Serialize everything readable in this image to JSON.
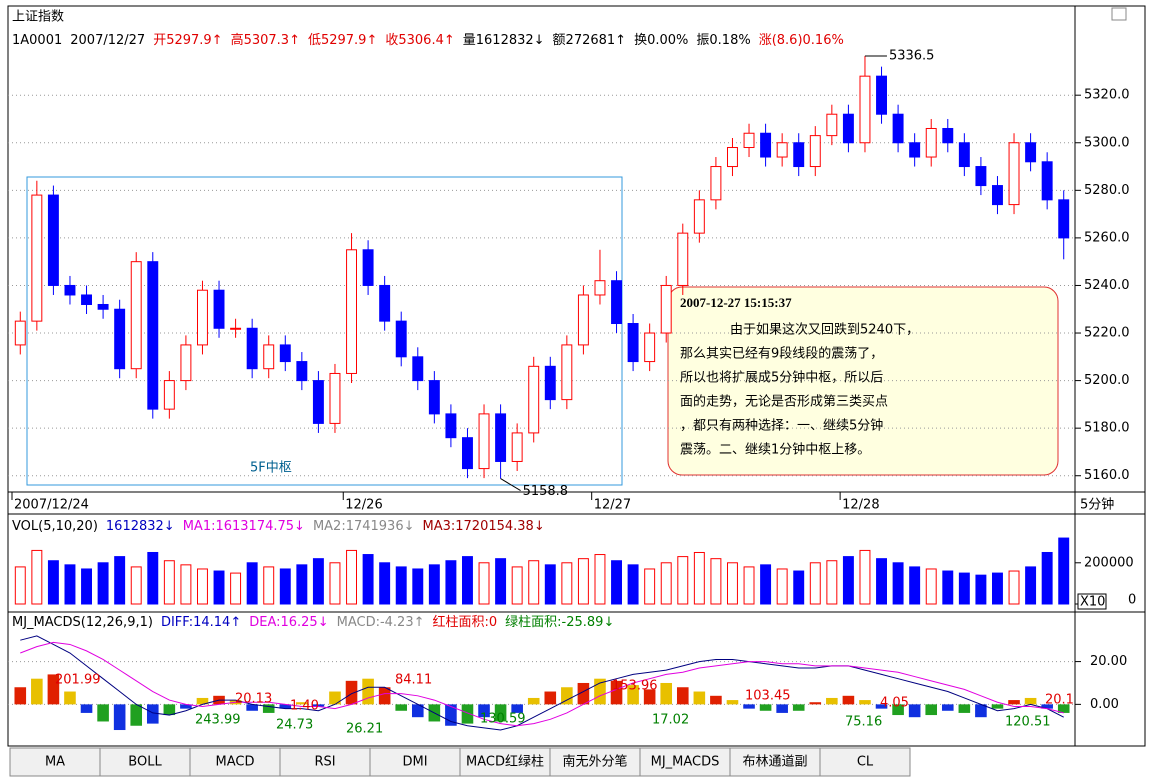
{
  "quote_line": [
    {
      "text": "1A0001",
      "color": "#000000"
    },
    {
      "text": "2007/12/27",
      "color": "#000000"
    },
    {
      "text": "开5297.9↑",
      "color": "#e00000"
    },
    {
      "text": "高5307.3↑",
      "color": "#e00000"
    },
    {
      "text": "低5297.9↑",
      "color": "#e00000"
    },
    {
      "text": "收5306.4↑",
      "color": "#e00000"
    },
    {
      "text": "量1612832↓",
      "color": "#000000"
    },
    {
      "text": "额272681↑",
      "color": "#000000"
    },
    {
      "text": "换0.00%",
      "color": "#000000"
    },
    {
      "text": "振0.18%",
      "color": "#000000"
    },
    {
      "text": "涨(8.6)0.16%",
      "color": "#e00000"
    }
  ],
  "zone_label": "5F中枢",
  "note": {
    "time": "2007-12-27 15:15:37",
    "lines": [
      "由于如果这次又回跌到5240下，",
      "那么其实已经有9段线段的震荡了，",
      "所以也将扩展成5分钟中枢，所以后",
      "面的走势，无论是否形成第三类买点",
      "，都只有两种选择：一、继续5分钟",
      "震荡。二、继续1分钟中枢上移。"
    ]
  },
  "tabs": [
    "MA",
    "BOLL",
    "MACD",
    "RSI",
    "DMI",
    "MACD红绿柱",
    "南无外分笔",
    "MJ_MACDS",
    "布林通道副",
    "CL"
  ],
  "chart_data": [
    {
      "type": "candlestick",
      "title": "上证指数",
      "period": "5分钟",
      "up_color": "#ff0000",
      "down_color": "#0000ff",
      "grid": true,
      "categories": [
        "2007/12/24",
        null,
        null,
        null,
        null,
        null,
        null,
        null,
        null,
        null,
        null,
        null,
        null,
        null,
        null,
        null,
        null,
        null,
        null,
        null,
        "12/26",
        null,
        null,
        null,
        null,
        null,
        null,
        null,
        null,
        null,
        null,
        null,
        null,
        null,
        null,
        "12/27",
        null,
        null,
        null,
        null,
        null,
        null,
        null,
        null,
        null,
        null,
        null,
        null,
        null,
        null,
        "12/28",
        null,
        null,
        null,
        null,
        null,
        null,
        null,
        null,
        null,
        null,
        null,
        null,
        null
      ],
      "open": [
        5215,
        5225,
        5278,
        5240,
        5236,
        5232,
        5230,
        5205,
        5250,
        5188,
        5200,
        5215,
        5238,
        5222,
        5222,
        5205,
        5215,
        5208,
        5200,
        5182,
        5203,
        5255,
        5240,
        5225,
        5210,
        5200,
        5186,
        5176,
        5163,
        5186,
        5166,
        5178,
        5206,
        5192,
        5215,
        5236,
        5242,
        5224,
        5208,
        5220,
        5240,
        5262,
        5276,
        5290,
        5298,
        5304,
        5294,
        5300,
        5290,
        5303,
        5312,
        5300,
        5328,
        5312,
        5300,
        5294,
        5306,
        5300,
        5290,
        5282,
        5274,
        5300,
        5292,
        5276
      ],
      "high": [
        5229,
        5284,
        5282,
        5244,
        5240,
        5236,
        5234,
        5254,
        5254,
        5204,
        5219,
        5242,
        5242,
        5226,
        5226,
        5219,
        5219,
        5212,
        5204,
        5207,
        5262,
        5259,
        5244,
        5229,
        5214,
        5204,
        5190,
        5180,
        5190,
        5190,
        5182,
        5210,
        5210,
        5219,
        5240,
        5255,
        5246,
        5228,
        5224,
        5244,
        5266,
        5280,
        5294,
        5302,
        5308,
        5308,
        5304,
        5304,
        5307,
        5316,
        5316,
        5336.5,
        5332,
        5316,
        5304,
        5310,
        5310,
        5304,
        5294,
        5286,
        5304,
        5304,
        5296,
        5280
      ],
      "low": [
        5211,
        5221,
        5236,
        5232,
        5228,
        5226,
        5201,
        5201,
        5184,
        5184,
        5196,
        5211,
        5218,
        5218,
        5201,
        5201,
        5204,
        5196,
        5178,
        5178,
        5199,
        5236,
        5221,
        5206,
        5196,
        5182,
        5172,
        5159,
        5159,
        5158.8,
        5162,
        5174,
        5188,
        5188,
        5211,
        5232,
        5220,
        5204,
        5204,
        5216,
        5236,
        5258,
        5272,
        5286,
        5294,
        5290,
        5290,
        5286,
        5286,
        5299,
        5296,
        5296,
        5308,
        5296,
        5290,
        5290,
        5296,
        5286,
        5278,
        5270,
        5270,
        5288,
        5272,
        5251
      ],
      "close": [
        5225,
        5278,
        5240,
        5236,
        5232,
        5230,
        5205,
        5250,
        5188,
        5200,
        5215,
        5238,
        5222,
        5222,
        5205,
        5215,
        5208,
        5200,
        5182,
        5203,
        5255,
        5240,
        5225,
        5210,
        5200,
        5186,
        5176,
        5163,
        5186,
        5166,
        5178,
        5206,
        5192,
        5215,
        5236,
        5242,
        5224,
        5208,
        5220,
        5240,
        5262,
        5276,
        5290,
        5298,
        5304,
        5294,
        5300,
        5290,
        5303,
        5312,
        5300,
        5328,
        5312,
        5300,
        5294,
        5306,
        5300,
        5290,
        5282,
        5274,
        5300,
        5292,
        5276,
        5260
      ],
      "ylim": [
        5154,
        5339
      ],
      "yticks": [
        {
          "value": 5160,
          "label": "5160.0"
        },
        {
          "value": 5180,
          "label": "5180.0"
        },
        {
          "value": 5200,
          "label": "5200.0"
        },
        {
          "value": 5220,
          "label": "5220.0"
        },
        {
          "value": 5240,
          "label": "5240.0"
        },
        {
          "value": 5260,
          "label": "5260.0"
        },
        {
          "value": 5280,
          "label": "5280.0"
        },
        {
          "value": 5300,
          "label": "5300.0"
        },
        {
          "value": 5320,
          "label": "5320.0"
        }
      ]
    },
    {
      "type": "bar",
      "scale_label": "X10",
      "legend": [
        {
          "text": "VOL(5,10,20)",
          "color": "#000000"
        },
        {
          "text": "1612832↓",
          "color": "#0000c0"
        },
        {
          "text": "MA1:1613174.75↓",
          "color": "#e000e0"
        },
        {
          "text": "MA2:1741936↓",
          "color": "#888888"
        },
        {
          "text": "MA3:1720154.38↓",
          "color": "#a00000"
        }
      ],
      "values": [
        180000,
        260000,
        210000,
        190000,
        170000,
        200000,
        230000,
        180000,
        250000,
        210000,
        190000,
        170000,
        160000,
        150000,
        200000,
        180000,
        170000,
        190000,
        220000,
        200000,
        260000,
        240000,
        200000,
        180000,
        170000,
        190000,
        210000,
        230000,
        200000,
        220000,
        180000,
        210000,
        190000,
        200000,
        220000,
        240000,
        210000,
        190000,
        170000,
        200000,
        230000,
        250000,
        220000,
        200000,
        180000,
        190000,
        170000,
        160000,
        200000,
        210000,
        230000,
        260000,
        220000,
        200000,
        180000,
        170000,
        160000,
        150000,
        140000,
        150000,
        160000,
        180000,
        250000,
        320000
      ],
      "ylim": [
        0,
        330000
      ],
      "yticks": [
        0,
        200000
      ]
    },
    {
      "type": "macd",
      "legend": [
        {
          "text": "MJ_MACDS(12,26,9,1)",
          "color": "#000000"
        },
        {
          "text": "DIFF:14.14↑",
          "color": "#0000c0"
        },
        {
          "text": "DEA:16.25↓",
          "color": "#e000e0"
        },
        {
          "text": "MACD:-4.23↑",
          "color": "#888888"
        },
        {
          "text": "红柱面积:0",
          "color": "#e00000"
        },
        {
          "text": "绿柱面积:-25.89↓",
          "color": "#008000"
        }
      ],
      "values": [
        8,
        12,
        14,
        6,
        -4,
        -8,
        -12,
        -10,
        -9,
        -5,
        -2,
        3,
        4,
        2,
        -3,
        -4,
        -2,
        1,
        -1,
        6,
        11,
        12,
        8,
        -3,
        -6,
        -8,
        -10,
        -9,
        -6,
        -8,
        -4,
        3,
        6,
        8,
        10,
        12,
        11,
        9,
        7,
        10,
        8,
        6,
        4,
        2,
        -2,
        -3,
        -4,
        -3,
        1,
        3,
        4,
        2,
        -2,
        -5,
        -6,
        -5,
        -3,
        -4,
        -6,
        -2,
        2,
        3,
        -2,
        -4
      ],
      "series": [
        {
          "color": "#000080",
          "values": [
            30,
            32,
            28,
            24,
            18,
            12,
            6,
            0,
            -4,
            -5,
            -3,
            0,
            2,
            2,
            0,
            -1,
            -2,
            -2,
            -3,
            0,
            5,
            8,
            8,
            4,
            0,
            -4,
            -8,
            -10,
            -11,
            -12,
            -10,
            -6,
            -2,
            2,
            6,
            10,
            12,
            14,
            15,
            16,
            18,
            20,
            21,
            21,
            20,
            19,
            18,
            17,
            17,
            18,
            18,
            16,
            14,
            12,
            10,
            8,
            6,
            3,
            0,
            -3,
            -2,
            0,
            -2,
            -6
          ]
        },
        {
          "color": "#e000e0",
          "values": [
            24,
            27,
            29,
            28,
            25,
            21,
            16,
            11,
            6,
            2,
            0,
            -1,
            0,
            1,
            1,
            1,
            0,
            -1,
            -1,
            -2,
            0,
            3,
            5,
            5,
            4,
            2,
            -1,
            -4,
            -7,
            -9,
            -10,
            -9,
            -7,
            -4,
            0,
            4,
            7,
            10,
            12,
            14,
            15,
            17,
            18,
            19,
            20,
            20,
            19,
            19,
            18,
            18,
            18,
            17,
            16,
            15,
            13,
            11,
            9,
            7,
            4,
            1,
            -1,
            -1,
            -2,
            -4
          ]
        }
      ],
      "red_area_labels": [
        "201.99",
        "20.13",
        "1.40",
        "84.11",
        "153.96",
        "103.45",
        "4.05",
        "20.1"
      ],
      "green_area_labels": [
        "243.99",
        "24.73",
        "26.21",
        "130.59",
        "17.02",
        "75.16",
        "120.51"
      ],
      "ylim": [
        -19,
        35.7
      ],
      "yticks": [
        {
          "value": 0,
          "label": "0.00"
        },
        {
          "value": 20,
          "label": "20.00"
        }
      ]
    }
  ]
}
